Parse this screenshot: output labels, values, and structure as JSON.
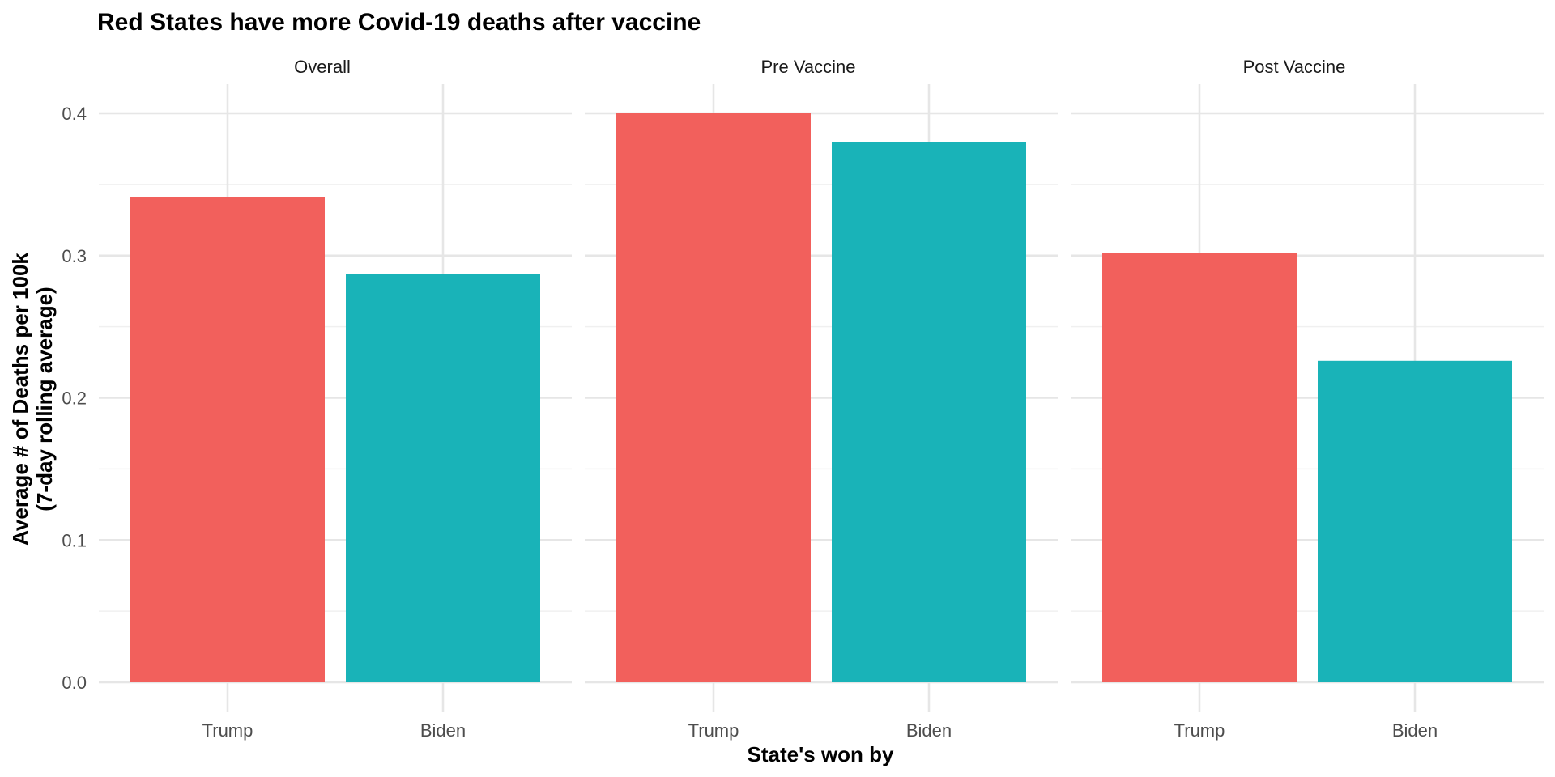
{
  "chart_data": {
    "type": "bar",
    "title": "Red States have more Covid-19 deaths after vaccine",
    "xlabel": "State's won by",
    "ylabel": [
      "Average # of Deaths per 100k",
      "(7-day rolling average)"
    ],
    "ylim": [
      0,
      0.4
    ],
    "yticks": [
      "0.0",
      "0.1",
      "0.2",
      "0.3",
      "0.4"
    ],
    "categories": [
      "Trump",
      "Biden"
    ],
    "colors": {
      "Trump": "#F2605C",
      "Biden": "#19B3B8"
    },
    "grid": true,
    "legend": "none",
    "facets": [
      {
        "label": "Overall",
        "values": [
          0.341,
          0.287
        ]
      },
      {
        "label": "Pre Vaccine",
        "values": [
          0.4,
          0.38
        ]
      },
      {
        "label": "Post Vaccine",
        "values": [
          0.302,
          0.226
        ]
      }
    ]
  }
}
